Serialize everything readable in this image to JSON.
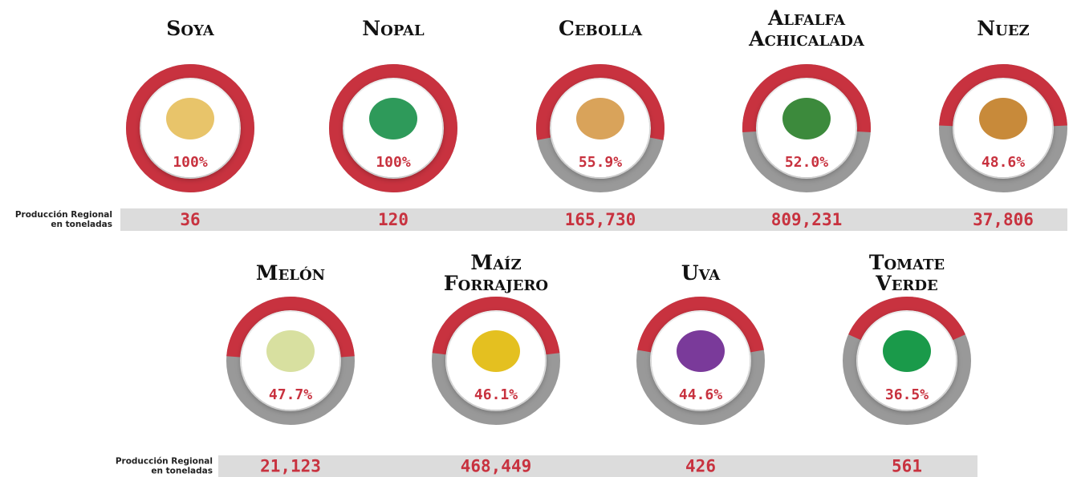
{
  "rows": [
    {
      "label_lines": [
        "Producción Regional",
        "en toneladas"
      ],
      "items": [
        {
          "name_lines": [
            "Soya"
          ],
          "percent": 100,
          "percent_label": "100%",
          "production": "36"
        },
        {
          "name_lines": [
            "Nopal"
          ],
          "percent": 100,
          "percent_label": "100%",
          "production": "120"
        },
        {
          "name_lines": [
            "Cebolla"
          ],
          "percent": 55.9,
          "percent_label": "55.9%",
          "production": "165,730"
        },
        {
          "name_lines": [
            "Alfalfa",
            "Achicalada"
          ],
          "percent": 52.0,
          "percent_label": "52.0%",
          "production": "809,231"
        },
        {
          "name_lines": [
            "Nuez"
          ],
          "percent": 48.6,
          "percent_label": "48.6%",
          "production": "37,806"
        }
      ]
    },
    {
      "label_lines": [
        "Producción Regional",
        "en toneladas"
      ],
      "items": [
        {
          "name_lines": [
            "Melón"
          ],
          "percent": 47.7,
          "percent_label": "47.7%",
          "production": "21,123"
        },
        {
          "name_lines": [
            "Maíz",
            "Forrajero"
          ],
          "percent": 46.1,
          "percent_label": "46.1%",
          "production": "468,449"
        },
        {
          "name_lines": [
            "Uva"
          ],
          "percent": 44.6,
          "percent_label": "44.6%",
          "production": "426"
        },
        {
          "name_lines": [
            "Tomate",
            "Verde"
          ],
          "percent": 36.5,
          "percent_label": "36.5%",
          "production": "561"
        }
      ]
    }
  ]
}
